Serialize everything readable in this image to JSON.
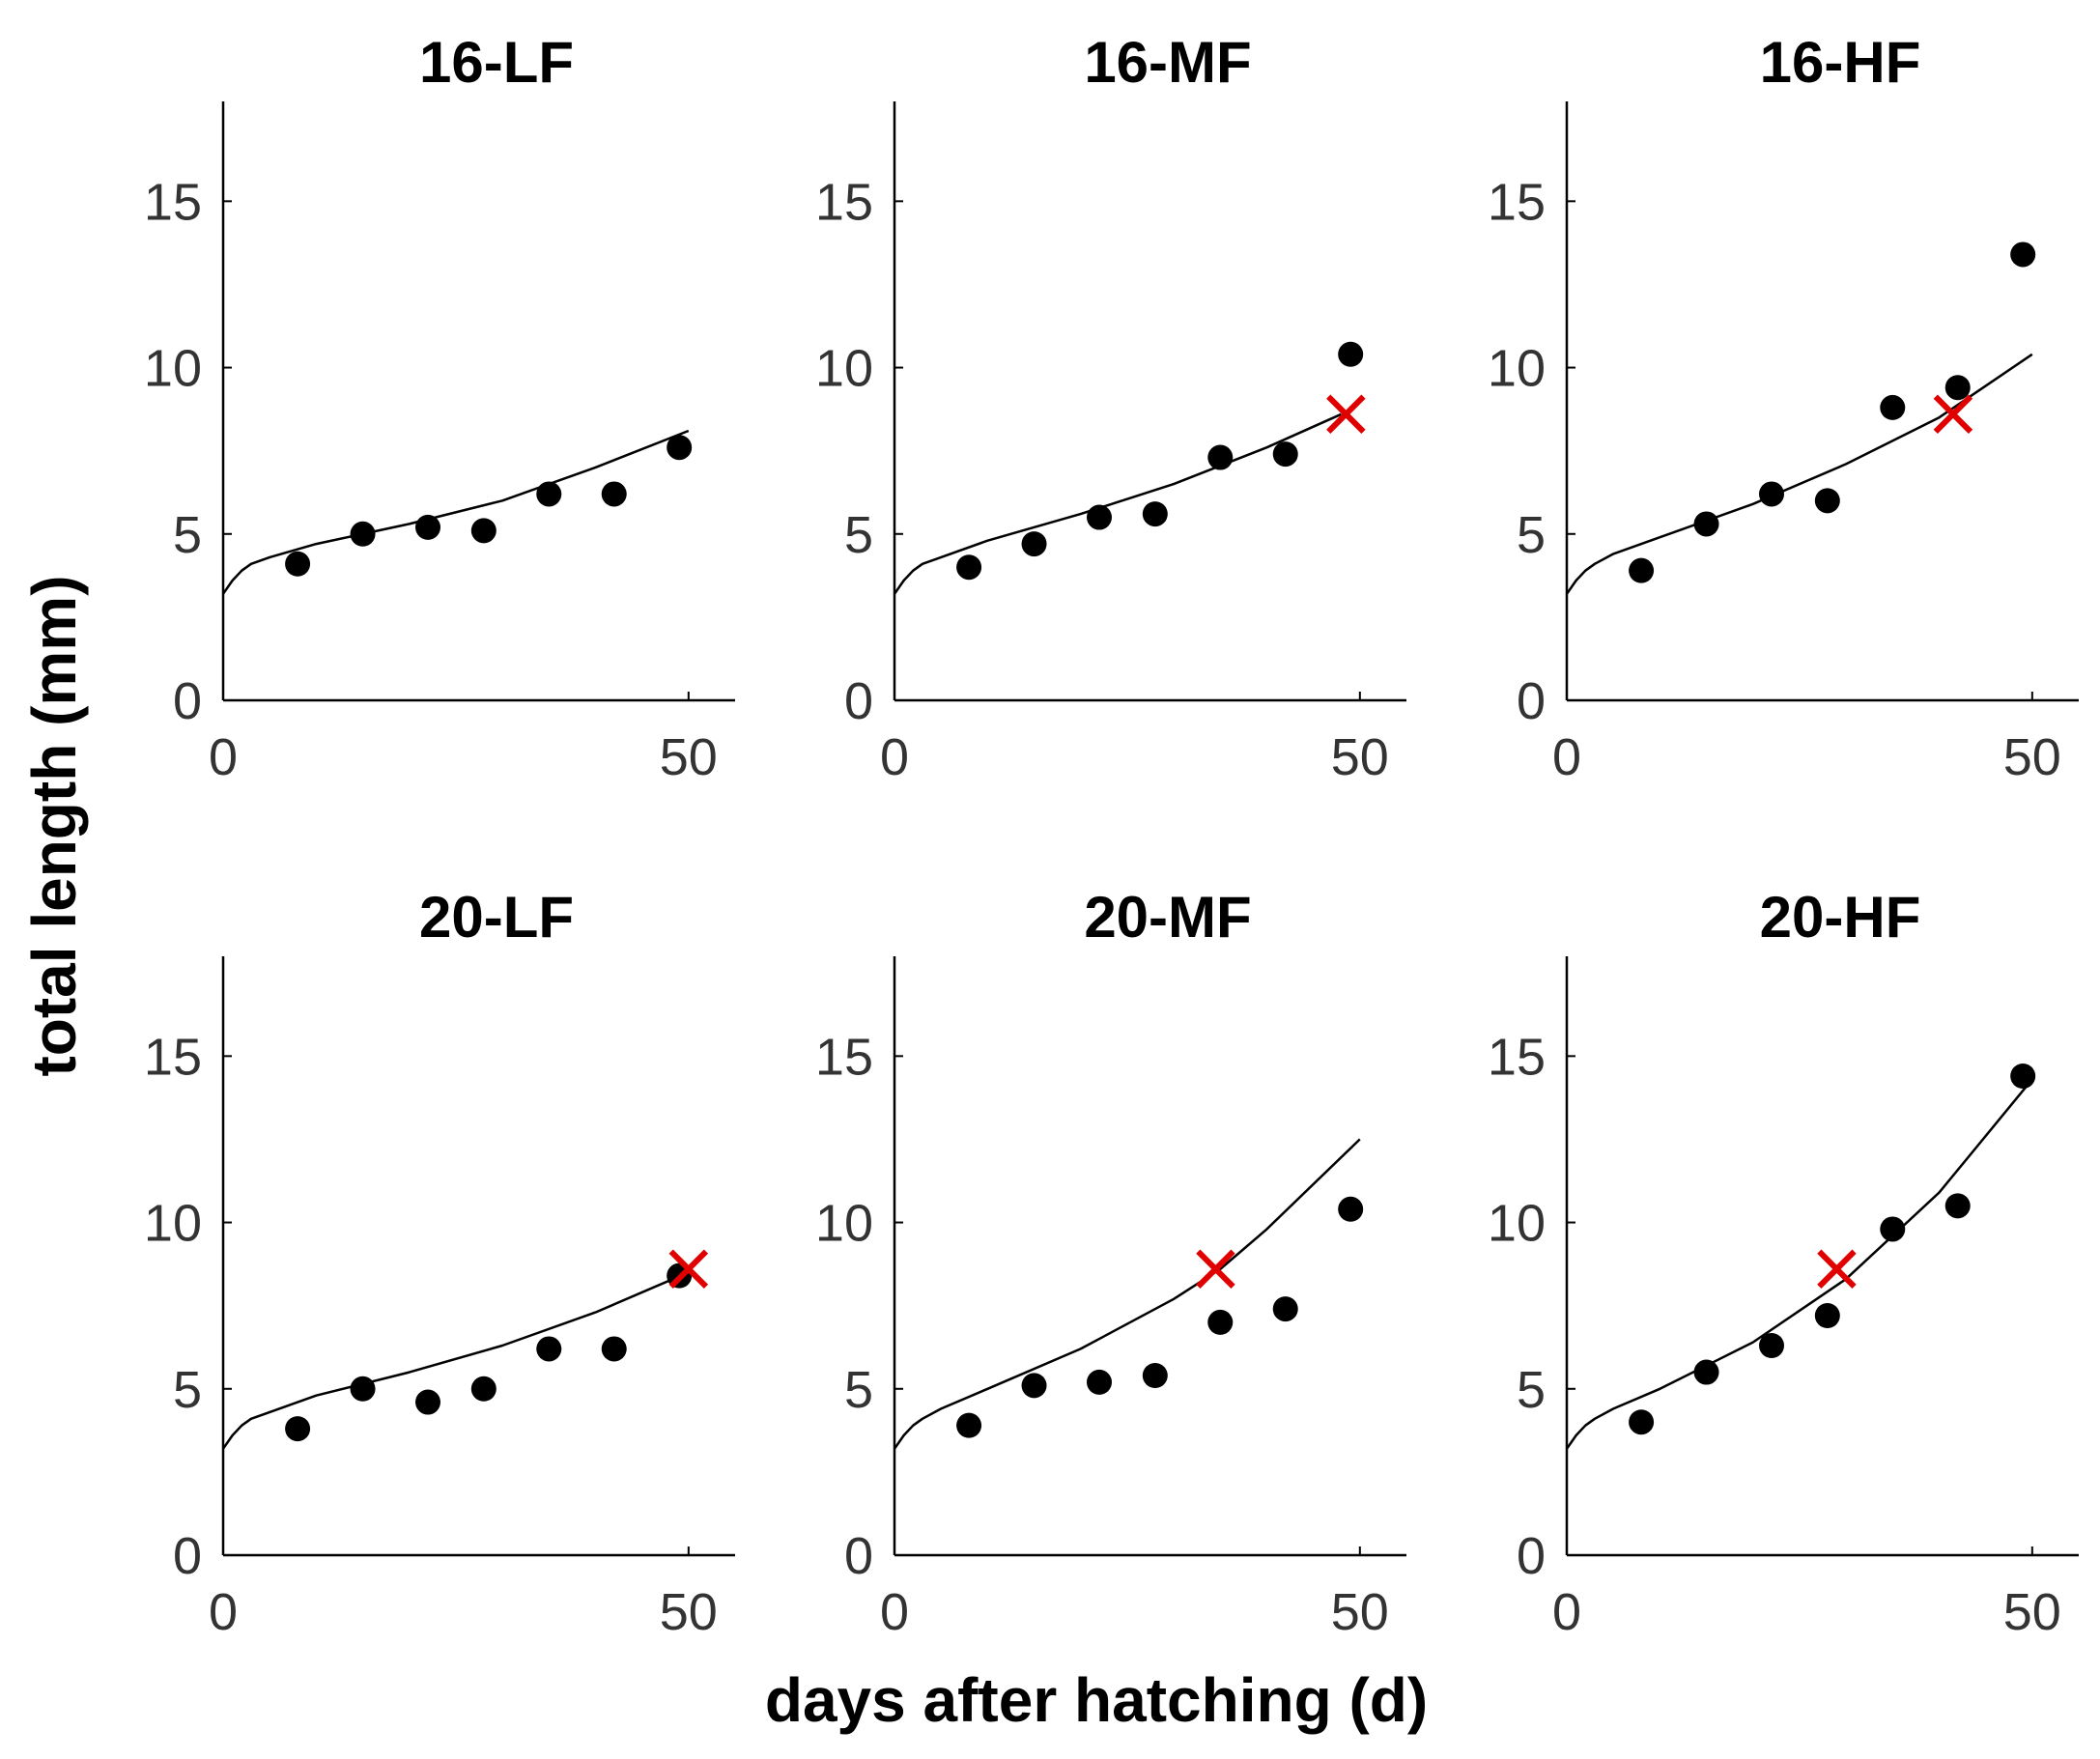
{
  "figure": {
    "ylabel": "total length (mm)",
    "xlabel": "days after hatching (d)"
  },
  "colors": {
    "points": "#000000",
    "model": "#000000",
    "marker_x": "#e00000",
    "axis": "#000000"
  },
  "chart_data": [
    {
      "type": "scatter",
      "title": "16-LF",
      "xlim": [
        0,
        55
      ],
      "ylim": [
        0,
        18
      ],
      "xticks": [
        0,
        50
      ],
      "yticks": [
        0,
        5,
        10,
        15
      ],
      "obs_x": [
        8,
        15,
        22,
        28,
        35,
        42,
        49
      ],
      "obs_y": [
        4.1,
        5.0,
        5.2,
        5.1,
        6.2,
        6.2,
        7.6
      ],
      "model_x": [
        0,
        1,
        2,
        3,
        5,
        10,
        20,
        30,
        40,
        50
      ],
      "model_y": [
        3.2,
        3.6,
        3.9,
        4.1,
        4.3,
        4.7,
        5.3,
        6.0,
        7.0,
        8.1
      ],
      "cross": null
    },
    {
      "type": "scatter",
      "title": "16-MF",
      "xlim": [
        0,
        55
      ],
      "ylim": [
        0,
        18
      ],
      "xticks": [
        0,
        50
      ],
      "yticks": [
        0,
        5,
        10,
        15
      ],
      "obs_x": [
        8,
        15,
        22,
        28,
        35,
        42,
        49
      ],
      "obs_y": [
        4.0,
        4.7,
        5.5,
        5.6,
        7.3,
        7.4,
        10.4
      ],
      "model_x": [
        0,
        1,
        2,
        3,
        5,
        10,
        20,
        30,
        40,
        48
      ],
      "model_y": [
        3.2,
        3.6,
        3.9,
        4.1,
        4.3,
        4.8,
        5.6,
        6.5,
        7.6,
        8.6
      ],
      "cross": [
        48.5,
        8.6
      ]
    },
    {
      "type": "scatter",
      "title": "16-HF",
      "xlim": [
        0,
        55
      ],
      "ylim": [
        0,
        18
      ],
      "xticks": [
        0,
        50
      ],
      "yticks": [
        0,
        5,
        10,
        15
      ],
      "obs_x": [
        8,
        15,
        22,
        28,
        35,
        42,
        49
      ],
      "obs_y": [
        3.9,
        5.3,
        6.2,
        6.0,
        8.8,
        9.4,
        13.4
      ],
      "model_x": [
        0,
        1,
        2,
        3,
        5,
        10,
        20,
        30,
        40,
        50
      ],
      "model_y": [
        3.2,
        3.6,
        3.9,
        4.1,
        4.4,
        4.9,
        5.9,
        7.1,
        8.5,
        10.4
      ],
      "cross": [
        41.5,
        8.6
      ]
    },
    {
      "type": "scatter",
      "title": "20-LF",
      "xlim": [
        0,
        55
      ],
      "ylim": [
        0,
        18
      ],
      "xticks": [
        0,
        50
      ],
      "yticks": [
        0,
        5,
        10,
        15
      ],
      "obs_x": [
        8,
        15,
        22,
        28,
        35,
        42,
        49
      ],
      "obs_y": [
        3.8,
        5.0,
        4.6,
        5.0,
        6.2,
        6.2,
        8.4
      ],
      "model_x": [
        0,
        1,
        2,
        3,
        5,
        10,
        20,
        30,
        40,
        50
      ],
      "model_y": [
        3.2,
        3.6,
        3.9,
        4.1,
        4.3,
        4.8,
        5.5,
        6.3,
        7.3,
        8.5
      ],
      "cross": [
        50,
        8.6
      ]
    },
    {
      "type": "scatter",
      "title": "20-MF",
      "xlim": [
        0,
        55
      ],
      "ylim": [
        0,
        18
      ],
      "xticks": [
        0,
        50
      ],
      "yticks": [
        0,
        5,
        10,
        15
      ],
      "obs_x": [
        8,
        15,
        22,
        28,
        35,
        42,
        49
      ],
      "obs_y": [
        3.9,
        5.1,
        5.2,
        5.4,
        7.0,
        7.4,
        10.4
      ],
      "model_x": [
        0,
        1,
        2,
        3,
        5,
        10,
        20,
        30,
        35,
        40,
        50
      ],
      "model_y": [
        3.2,
        3.6,
        3.9,
        4.1,
        4.4,
        5.0,
        6.2,
        7.7,
        8.6,
        9.8,
        12.5
      ],
      "cross": [
        34.5,
        8.6
      ]
    },
    {
      "type": "scatter",
      "title": "20-HF",
      "xlim": [
        0,
        55
      ],
      "ylim": [
        0,
        18
      ],
      "xticks": [
        0,
        50
      ],
      "yticks": [
        0,
        5,
        10,
        15
      ],
      "obs_x": [
        8,
        15,
        22,
        28,
        35,
        42,
        49
      ],
      "obs_y": [
        4.0,
        5.5,
        6.3,
        7.2,
        9.8,
        10.5,
        14.4
      ],
      "model_x": [
        0,
        1,
        2,
        3,
        5,
        10,
        20,
        30,
        40,
        50
      ],
      "model_y": [
        3.2,
        3.6,
        3.9,
        4.1,
        4.4,
        5.0,
        6.4,
        8.3,
        10.9,
        14.3
      ],
      "cross": [
        29,
        8.6
      ]
    }
  ]
}
